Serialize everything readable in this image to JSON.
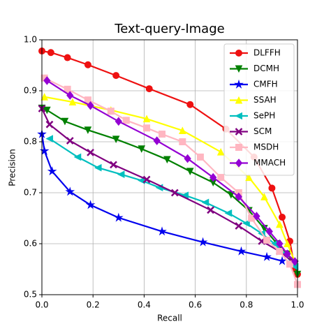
{
  "chart_data": {
    "type": "line",
    "title": "Text-query-Image",
    "x_label": "Recall",
    "y_label": "Precision",
    "xlim": [
      0,
      1
    ],
    "ylim": [
      0.5,
      1
    ],
    "xticks": [
      {
        "value": 0,
        "label": "0.0"
      },
      0.2,
      0.4,
      0.6,
      0.8,
      {
        "value": 1,
        "label": "1.0"
      }
    ],
    "yticks": [
      0.5,
      0.6,
      0.7,
      0.8,
      0.9,
      {
        "value": 1,
        "label": "1.0"
      }
    ],
    "grid": true,
    "legend": "upper right",
    "series": [
      {
        "name": "DLFFH",
        "color": "#ee1111",
        "marker": "circle",
        "x": [
          0,
          0.035,
          0.1,
          0.18,
          0.29,
          0.42,
          0.58,
          0.72,
          0.83,
          0.9,
          0.94,
          0.97,
          0.99,
          1.0
        ],
        "values": [
          0.978,
          0.975,
          0.965,
          0.951,
          0.93,
          0.904,
          0.873,
          0.825,
          0.77,
          0.709,
          0.652,
          0.605,
          0.55,
          0.54
        ]
      },
      {
        "name": "DCMH",
        "color": "#008000",
        "marker": "triangle-down",
        "x": [
          0,
          0.02,
          0.09,
          0.18,
          0.29,
          0.39,
          0.49,
          0.58,
          0.67,
          0.74,
          0.81,
          0.87,
          0.92,
          0.96,
          0.99,
          1.0
        ],
        "values": [
          0.866,
          0.862,
          0.84,
          0.823,
          0.805,
          0.786,
          0.765,
          0.742,
          0.72,
          0.696,
          0.665,
          0.63,
          0.6,
          0.58,
          0.56,
          0.54
        ]
      },
      {
        "name": "CMFH",
        "color": "#0000ee",
        "marker": "star",
        "x": [
          0,
          0.01,
          0.04,
          0.11,
          0.19,
          0.3,
          0.47,
          0.63,
          0.78,
          0.88,
          0.94
        ],
        "values": [
          0.815,
          0.782,
          0.742,
          0.702,
          0.676,
          0.651,
          0.624,
          0.603,
          0.585,
          0.574,
          0.566
        ]
      },
      {
        "name": "SSAH",
        "color": "#ffff00",
        "marker": "triangle-up",
        "x": [
          0.01,
          0.12,
          0.27,
          0.41,
          0.55,
          0.7,
          0.81,
          0.87,
          0.93,
          0.96,
          0.99
        ],
        "values": [
          0.888,
          0.878,
          0.862,
          0.845,
          0.822,
          0.78,
          0.73,
          0.692,
          0.638,
          0.6,
          0.565
        ]
      },
      {
        "name": "SePH",
        "color": "#00bfbf",
        "marker": "triangle-left",
        "x": [
          0.03,
          0.14,
          0.22,
          0.31,
          0.39,
          0.46,
          0.56,
          0.64,
          0.73,
          0.8,
          0.86,
          0.91,
          0.95,
          0.99
        ],
        "values": [
          0.806,
          0.77,
          0.749,
          0.736,
          0.724,
          0.71,
          0.695,
          0.681,
          0.66,
          0.64,
          0.62,
          0.6,
          0.58,
          0.555
        ]
      },
      {
        "name": "SCM",
        "color": "#800080",
        "marker": "x",
        "x": [
          0,
          0.03,
          0.11,
          0.19,
          0.28,
          0.41,
          0.52,
          0.66,
          0.77,
          0.86,
          0.93,
          0.98
        ],
        "values": [
          0.865,
          0.834,
          0.802,
          0.779,
          0.755,
          0.726,
          0.7,
          0.666,
          0.635,
          0.605,
          0.585,
          0.565
        ]
      },
      {
        "name": "MSDH",
        "color": "#ffb6c1",
        "marker": "square",
        "x": [
          0.01,
          0.1,
          0.18,
          0.27,
          0.33,
          0.41,
          0.47,
          0.55,
          0.62,
          0.7,
          0.77,
          0.82,
          0.88,
          0.93,
          0.97,
          1.0
        ],
        "values": [
          0.925,
          0.903,
          0.882,
          0.86,
          0.842,
          0.827,
          0.815,
          0.8,
          0.77,
          0.73,
          0.7,
          0.65,
          0.607,
          0.585,
          0.56,
          0.52
        ]
      },
      {
        "name": "MMACH",
        "color": "#9400d3",
        "marker": "diamond",
        "x": [
          0.02,
          0.11,
          0.19,
          0.3,
          0.45,
          0.57,
          0.67,
          0.77,
          0.84,
          0.89,
          0.93,
          0.96,
          0.99
        ],
        "values": [
          0.92,
          0.891,
          0.871,
          0.84,
          0.802,
          0.767,
          0.73,
          0.692,
          0.654,
          0.624,
          0.6,
          0.58,
          0.565
        ]
      }
    ]
  }
}
